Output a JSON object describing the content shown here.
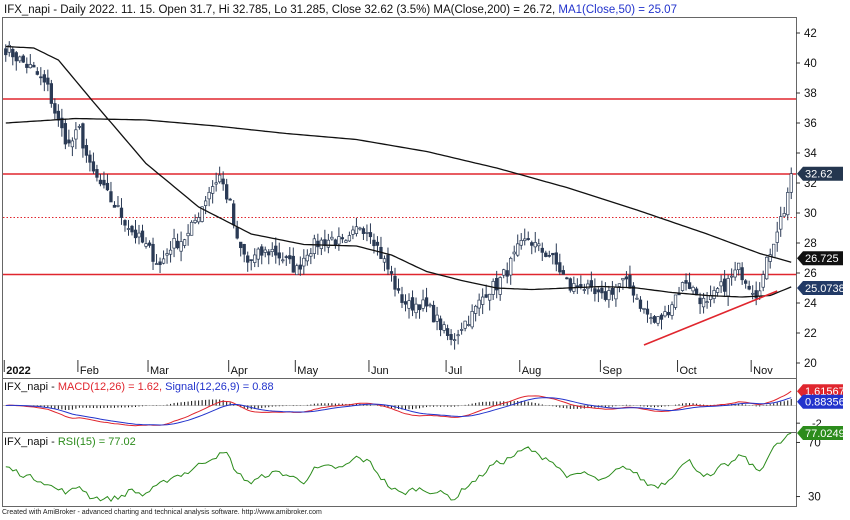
{
  "chart_data": [
    {
      "type": "candlestick",
      "header": {
        "symbol": "IFX_napi",
        "ohlc_text": " - Daily 2022. 11. 15. Open 31.7, Hi 32.785, Lo 31.285, Close 32.62 (3.5%) ",
        "ma200_text": "MA(Close,200) = 26.72,",
        "ma50_text": " MA1(Close,50) = 25.07"
      },
      "ylim": [
        19,
        43
      ],
      "y_ticks": [
        20,
        22,
        24,
        26,
        28,
        30,
        32,
        34,
        36,
        38,
        40,
        42
      ],
      "x_labels": [
        {
          "label": "2022",
          "idx": 0
        },
        {
          "label": "Feb",
          "idx": 21
        },
        {
          "label": "Mar",
          "idx": 41
        },
        {
          "label": "Apr",
          "idx": 64
        },
        {
          "label": "May",
          "idx": 83
        },
        {
          "label": "Jun",
          "idx": 104
        },
        {
          "label": "Jul",
          "idx": 126
        },
        {
          "label": "Aug",
          "idx": 147
        },
        {
          "label": "Sep",
          "idx": 170
        },
        {
          "label": "Oct",
          "idx": 192
        },
        {
          "label": "Nov",
          "idx": 213
        }
      ],
      "horizontal_levels": [
        {
          "value": 37.6,
          "style": "solid",
          "color": "#e0262e"
        },
        {
          "value": 32.6,
          "style": "solid",
          "color": "#e0262e"
        },
        {
          "value": 29.7,
          "style": "dotted",
          "color": "#e0262e"
        },
        {
          "value": 25.9,
          "style": "solid",
          "color": "#e0262e"
        }
      ],
      "trendline": {
        "from": {
          "idx": 182,
          "value": 21.2
        },
        "to": {
          "idx": 220,
          "value": 24.8
        },
        "color": "#e0262e"
      },
      "close_keypoints": [
        [
          0,
          41.0
        ],
        [
          4,
          40.2
        ],
        [
          8,
          39.5
        ],
        [
          12,
          38.3
        ],
        [
          15,
          36.0
        ],
        [
          18,
          34.5
        ],
        [
          21,
          35.5
        ],
        [
          24,
          33.0
        ],
        [
          28,
          31.5
        ],
        [
          32,
          30.2
        ],
        [
          36,
          28.8
        ],
        [
          39,
          28.0
        ],
        [
          41,
          27.5
        ],
        [
          44,
          26.5
        ],
        [
          47,
          27.8
        ],
        [
          52,
          28.5
        ],
        [
          55,
          30.0
        ],
        [
          58,
          31.5
        ],
        [
          61,
          32.5
        ],
        [
          64,
          30.5
        ],
        [
          66,
          28.0
        ],
        [
          69,
          26.7
        ],
        [
          72,
          27.2
        ],
        [
          76,
          27.5
        ],
        [
          80,
          26.8
        ],
        [
          83,
          26.2
        ],
        [
          86,
          27.5
        ],
        [
          89,
          28.0
        ],
        [
          93,
          28.3
        ],
        [
          97,
          27.8
        ],
        [
          101,
          29.2
        ],
        [
          104,
          28.8
        ],
        [
          107,
          27.2
        ],
        [
          110,
          25.8
        ],
        [
          112,
          24.5
        ],
        [
          115,
          23.8
        ],
        [
          118,
          24.0
        ],
        [
          121,
          23.5
        ],
        [
          124,
          22.5
        ],
        [
          127,
          21.4
        ],
        [
          130,
          22.5
        ],
        [
          133,
          23.2
        ],
        [
          137,
          24.8
        ],
        [
          140,
          25.2
        ],
        [
          143,
          26.2
        ],
        [
          146,
          27.5
        ],
        [
          149,
          28.3
        ],
        [
          152,
          27.6
        ],
        [
          155,
          27.2
        ],
        [
          158,
          26.2
        ],
        [
          161,
          25.0
        ],
        [
          164,
          25.3
        ],
        [
          167,
          24.6
        ],
        [
          170,
          24.3
        ],
        [
          173,
          24.9
        ],
        [
          176,
          25.4
        ],
        [
          179,
          24.8
        ],
        [
          182,
          23.5
        ],
        [
          185,
          22.7
        ],
        [
          188,
          23.2
        ],
        [
          191,
          24.5
        ],
        [
          194,
          25.5
        ],
        [
          197,
          24.6
        ],
        [
          200,
          23.8
        ],
        [
          203,
          24.8
        ],
        [
          206,
          25.4
        ],
        [
          209,
          26.3
        ],
        [
          212,
          25.3
        ],
        [
          214,
          24.7
        ],
        [
          216,
          25.8
        ],
        [
          218,
          27.5
        ],
        [
          220,
          29.0
        ],
        [
          222,
          30.2
        ],
        [
          224,
          32.62
        ]
      ],
      "moving_averages": [
        {
          "name": "MA(Close,200)",
          "last": 26.72,
          "label": "26.725",
          "color": "#111111",
          "keypoints": [
            [
              0,
              36.0
            ],
            [
              20,
              36.3
            ],
            [
              40,
              36.2
            ],
            [
              60,
              35.8
            ],
            [
              80,
              35.3
            ],
            [
              100,
              34.9
            ],
            [
              120,
              34.1
            ],
            [
              140,
              33.0
            ],
            [
              160,
              31.7
            ],
            [
              180,
              30.2
            ],
            [
              200,
              28.6
            ],
            [
              215,
              27.3
            ],
            [
              224,
              26.72
            ]
          ]
        },
        {
          "name": "MA1(Close,50)",
          "last": 25.07,
          "label": "25.0738",
          "color": "#111111",
          "keypoints": [
            [
              0,
              41.1
            ],
            [
              8,
              41.0
            ],
            [
              15,
              40.2
            ],
            [
              25,
              37.4
            ],
            [
              40,
              33.3
            ],
            [
              55,
              30.4
            ],
            [
              70,
              28.6
            ],
            [
              85,
              27.9
            ],
            [
              100,
              27.8
            ],
            [
              110,
              27.2
            ],
            [
              120,
              26.1
            ],
            [
              130,
              25.5
            ],
            [
              140,
              25.0
            ],
            [
              150,
              24.9
            ],
            [
              160,
              25.0
            ],
            [
              170,
              25.1
            ],
            [
              180,
              25.0
            ],
            [
              190,
              24.7
            ],
            [
              200,
              24.5
            ],
            [
              210,
              24.4
            ],
            [
              218,
              24.5
            ],
            [
              224,
              25.07
            ]
          ]
        }
      ],
      "last_price": {
        "value": 32.62,
        "label": "32.62",
        "color": "#24364f"
      }
    },
    {
      "type": "line",
      "header": {
        "prefix": "IFX_napi - ",
        "macd_text": "MACD(12,26) = 1.62,",
        "signal_text": " Signal(12,26,9) = 0.88"
      },
      "ylim": [
        -3,
        3
      ],
      "y_ticks": [
        -2
      ],
      "series": [
        {
          "name": "MACD(12,26)",
          "color": "#e0262e",
          "last": 1.62,
          "label": "1.61567"
        },
        {
          "name": "Signal(12,26,9)",
          "color": "#2233cc",
          "last": 0.88,
          "label": "0.883565"
        }
      ],
      "histogram_color": "#111111"
    },
    {
      "type": "line",
      "header": {
        "prefix": "IFX_napi - ",
        "rsi_text": "RSI(15) = 77.02"
      },
      "ylim": [
        23,
        77
      ],
      "y_ticks": [
        30,
        70
      ],
      "series": [
        {
          "name": "RSI(15)",
          "color": "#2c8c1c",
          "last": 77.02,
          "label": "77.0249",
          "keypoints": [
            [
              0,
              52
            ],
            [
              5,
              46
            ],
            [
              10,
              42
            ],
            [
              14,
              36
            ],
            [
              18,
              33
            ],
            [
              21,
              38
            ],
            [
              24,
              30
            ],
            [
              28,
              28
            ],
            [
              32,
              29
            ],
            [
              36,
              35
            ],
            [
              39,
              31
            ],
            [
              43,
              37
            ],
            [
              47,
              44
            ],
            [
              52,
              48
            ],
            [
              56,
              55
            ],
            [
              60,
              60
            ],
            [
              63,
              62
            ],
            [
              66,
              47
            ],
            [
              70,
              40
            ],
            [
              74,
              46
            ],
            [
              78,
              48
            ],
            [
              82,
              44
            ],
            [
              85,
              41
            ],
            [
              88,
              50
            ],
            [
              92,
              52
            ],
            [
              96,
              51
            ],
            [
              100,
              59
            ],
            [
              104,
              55
            ],
            [
              107,
              44
            ],
            [
              110,
              36
            ],
            [
              113,
              32
            ],
            [
              117,
              36
            ],
            [
              121,
              34
            ],
            [
              125,
              32
            ],
            [
              128,
              28
            ],
            [
              131,
              37
            ],
            [
              135,
              44
            ],
            [
              139,
              54
            ],
            [
              142,
              56
            ],
            [
              146,
              62
            ],
            [
              149,
              66
            ],
            [
              152,
              60
            ],
            [
              155,
              58
            ],
            [
              158,
              50
            ],
            [
              161,
              44
            ],
            [
              165,
              48
            ],
            [
              168,
              43
            ],
            [
              171,
              42
            ],
            [
              174,
              49
            ],
            [
              177,
              52
            ],
            [
              180,
              46
            ],
            [
              183,
              39
            ],
            [
              186,
              38
            ],
            [
              189,
              42
            ],
            [
              192,
              52
            ],
            [
              195,
              56
            ],
            [
              198,
              48
            ],
            [
              201,
              44
            ],
            [
              204,
              52
            ],
            [
              207,
              55
            ],
            [
              210,
              61
            ],
            [
              213,
              52
            ],
            [
              215,
              49
            ],
            [
              217,
              58
            ],
            [
              219,
              66
            ],
            [
              221,
              70
            ],
            [
              224,
              77.02
            ]
          ]
        }
      ]
    }
  ],
  "footer": "Created with AmiBroker - advanced charting and technical analysis software. http://www.amibroker.com"
}
